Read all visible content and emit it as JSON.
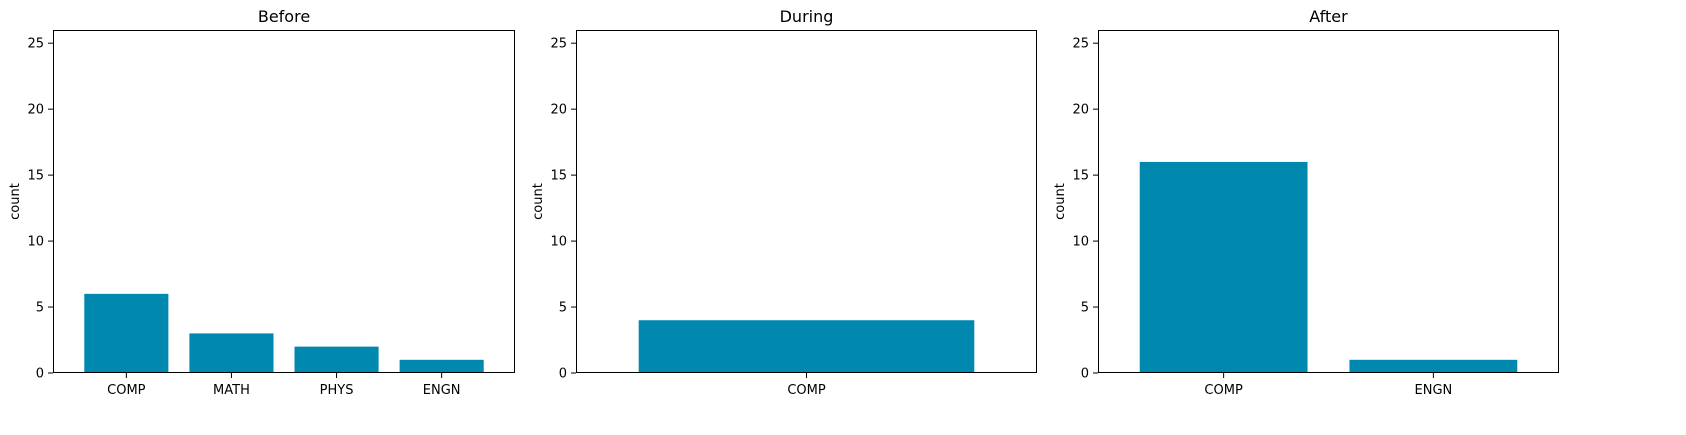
{
  "figure": {
    "bar_color": "#0088AE",
    "background": "#ffffff"
  },
  "chart_data": [
    {
      "type": "bar",
      "title": "Before",
      "ylabel": "count",
      "xlabel": "",
      "categories": [
        "COMP",
        "MATH",
        "PHYS",
        "ENGN"
      ],
      "values": [
        6,
        3,
        2,
        1
      ],
      "ylim": [
        0,
        26
      ],
      "yticks": [
        0,
        5,
        10,
        15,
        20,
        25
      ],
      "grid": false
    },
    {
      "type": "bar",
      "title": "During",
      "ylabel": "count",
      "xlabel": "",
      "categories": [
        "COMP"
      ],
      "values": [
        4
      ],
      "ylim": [
        0,
        26
      ],
      "yticks": [
        0,
        5,
        10,
        15,
        20,
        25
      ],
      "grid": false
    },
    {
      "type": "bar",
      "title": "After",
      "ylabel": "count",
      "xlabel": "",
      "categories": [
        "COMP",
        "ENGN"
      ],
      "values": [
        16,
        1
      ],
      "ylim": [
        0,
        26
      ],
      "yticks": [
        0,
        5,
        10,
        15,
        20,
        25
      ],
      "grid": false
    }
  ]
}
